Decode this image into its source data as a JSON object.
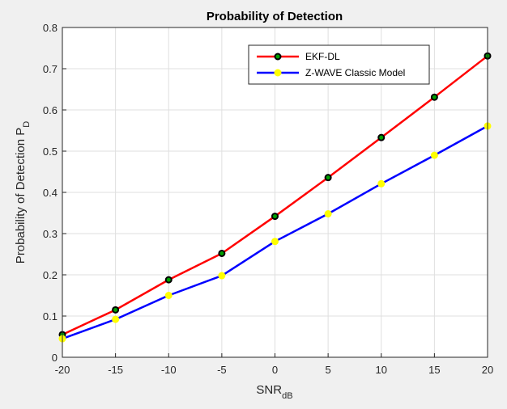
{
  "chart_data": {
    "type": "line",
    "title": "Probability of Detection",
    "xlabel": "SNR",
    "xlabel_sub": "dB",
    "ylabel": "Probability of Detection P",
    "ylabel_sub": "D",
    "x": [
      -20,
      -15,
      -10,
      -5,
      0,
      5,
      10,
      15,
      20
    ],
    "xlim": [
      -20,
      20
    ],
    "ylim": [
      0,
      0.8
    ],
    "xticks": [
      "-20",
      "-15",
      "-10",
      "-5",
      "0",
      "5",
      "10",
      "15",
      "20"
    ],
    "yticks": [
      "0",
      "0.1",
      "0.2",
      "0.3",
      "0.4",
      "0.5",
      "0.6",
      "0.7",
      "0.8"
    ],
    "grid": true,
    "legend_position": "top-right",
    "series": [
      {
        "name": "EKF-DL",
        "values": [
          0.055,
          0.115,
          0.188,
          0.252,
          0.342,
          0.436,
          0.533,
          0.631,
          0.731
        ],
        "line_color": "#ff0000",
        "marker_edge": "#000000",
        "marker_face": "#00a000"
      },
      {
        "name": "Z-WAVE Classic Model",
        "values": [
          0.045,
          0.092,
          0.15,
          0.198,
          0.281,
          0.348,
          0.421,
          0.49,
          0.561
        ],
        "line_color": "#0000ff",
        "marker_edge": "#ffff00",
        "marker_face": "#ffff00"
      }
    ]
  }
}
